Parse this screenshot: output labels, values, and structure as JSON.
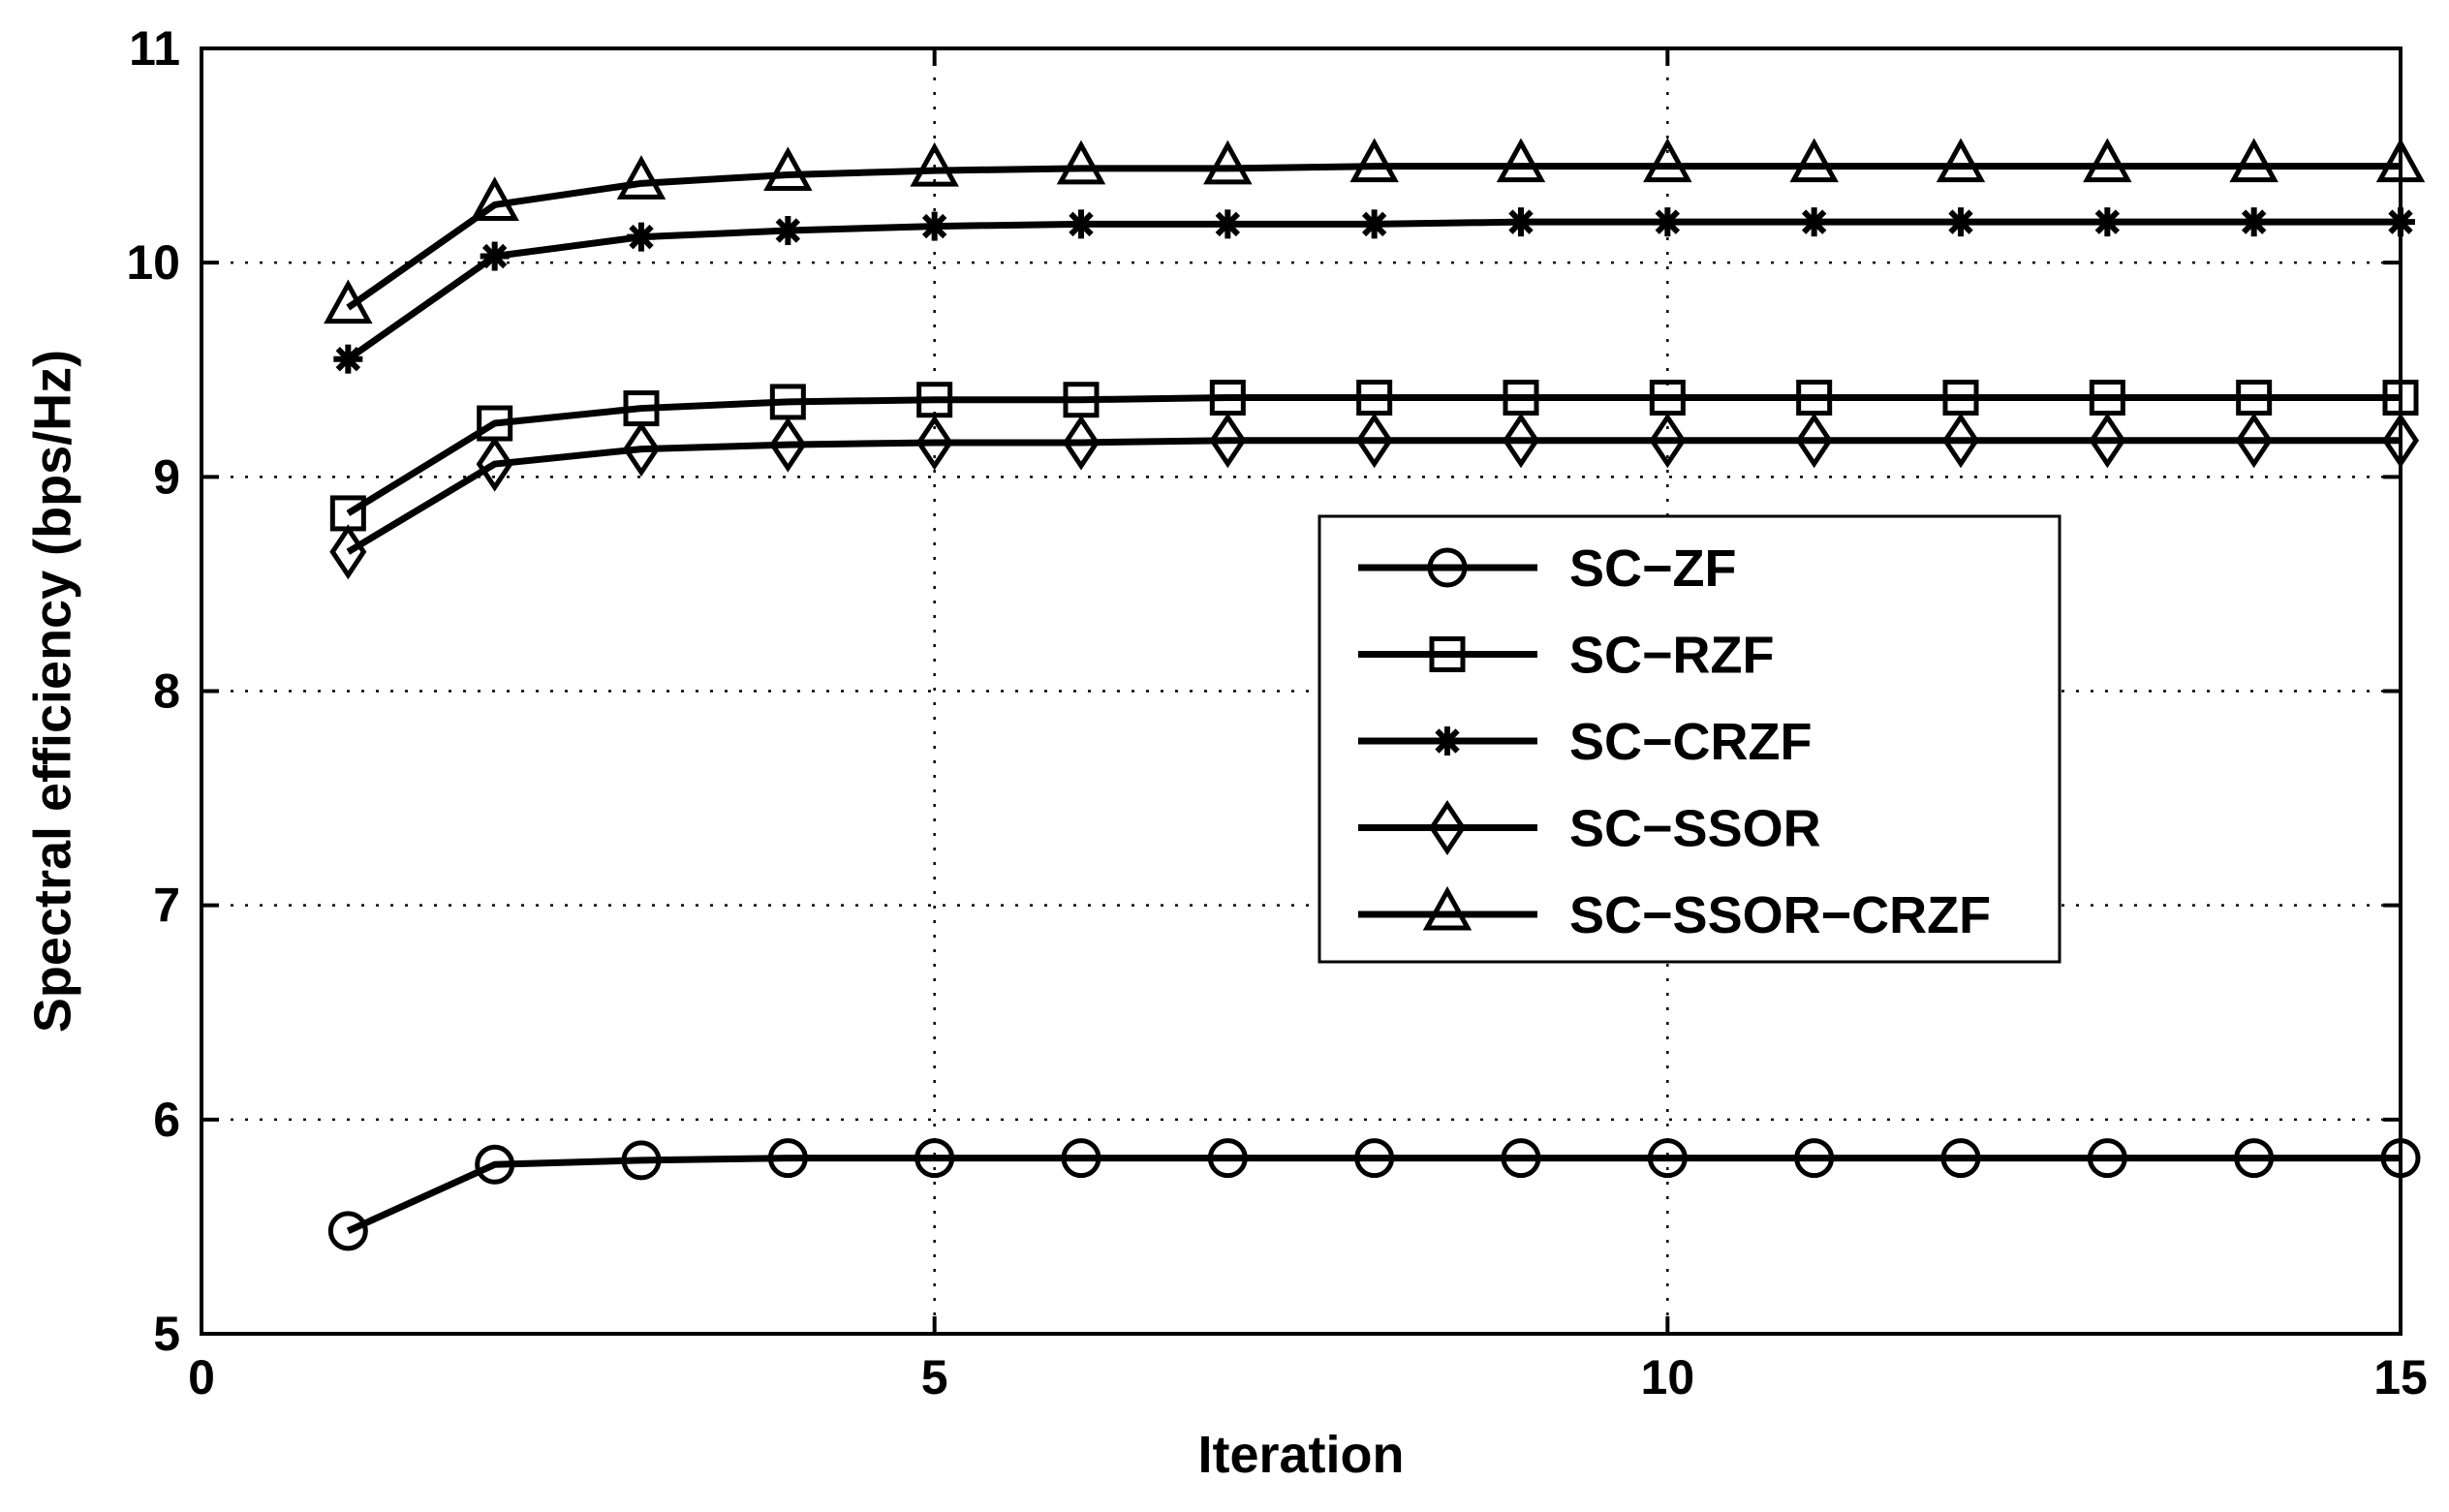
{
  "chart_data": {
    "type": "line",
    "title": "",
    "xlabel": "Iteration",
    "ylabel": "Spectral efficiency (bps/Hz)",
    "xlim": [
      0,
      15
    ],
    "ylim": [
      5,
      11
    ],
    "xticks": [
      0,
      5,
      10,
      15
    ],
    "yticks": [
      5,
      6,
      7,
      8,
      9,
      10,
      11
    ],
    "grid": true,
    "legend_position": "center-right",
    "x": [
      1,
      2,
      3,
      4,
      5,
      6,
      7,
      8,
      9,
      10,
      11,
      12,
      13,
      14,
      15
    ],
    "series": [
      {
        "name": "SC−ZF",
        "marker": "circle",
        "values": [
          5.48,
          5.79,
          5.81,
          5.82,
          5.82,
          5.82,
          5.82,
          5.82,
          5.82,
          5.82,
          5.82,
          5.82,
          5.82,
          5.82,
          5.82
        ]
      },
      {
        "name": "SC−RZF",
        "marker": "square",
        "values": [
          8.83,
          9.25,
          9.32,
          9.35,
          9.36,
          9.36,
          9.37,
          9.37,
          9.37,
          9.37,
          9.37,
          9.37,
          9.37,
          9.37,
          9.37
        ]
      },
      {
        "name": "SC−CRZF",
        "marker": "star",
        "values": [
          9.55,
          10.03,
          10.12,
          10.15,
          10.17,
          10.18,
          10.18,
          10.18,
          10.19,
          10.19,
          10.19,
          10.19,
          10.19,
          10.19,
          10.19
        ]
      },
      {
        "name": "SC−SSOR",
        "marker": "diamond",
        "values": [
          8.65,
          9.06,
          9.13,
          9.15,
          9.16,
          9.16,
          9.17,
          9.17,
          9.17,
          9.17,
          9.17,
          9.17,
          9.17,
          9.17,
          9.17
        ]
      },
      {
        "name": "SC−SSOR−CRZF",
        "marker": "triangle",
        "values": [
          9.79,
          10.27,
          10.37,
          10.41,
          10.43,
          10.44,
          10.44,
          10.45,
          10.45,
          10.45,
          10.45,
          10.45,
          10.45,
          10.45,
          10.45
        ]
      }
    ]
  }
}
